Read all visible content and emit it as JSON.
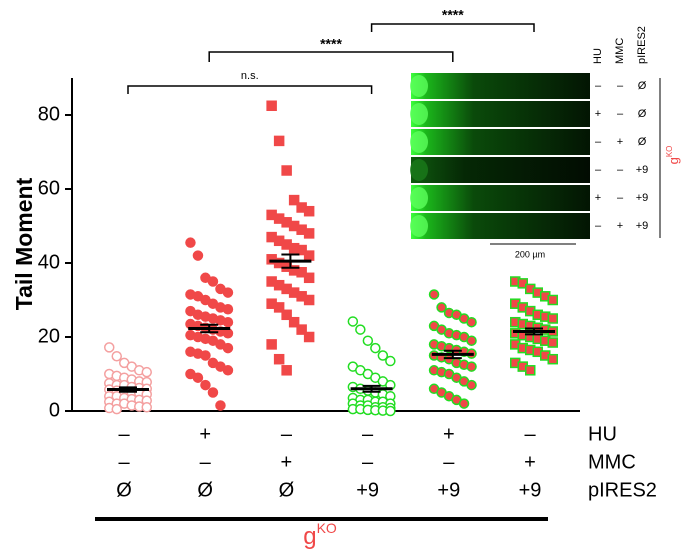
{
  "chart_data": {
    "type": "dot",
    "ylabel": "Tail Moment",
    "ylim": [
      0,
      90
    ],
    "yticks": [
      0,
      20,
      40,
      60,
      80
    ],
    "groups": [
      {
        "marker": "circle",
        "fill": "#ffffff",
        "stroke": "#f4a0a0",
        "mean": 5.8,
        "sem": 0.6,
        "values": [
          17.2,
          14.8,
          13,
          12,
          11,
          10.5,
          10,
          9.5,
          9,
          8.5,
          8,
          7.8,
          7.5,
          7,
          7,
          6.5,
          6.2,
          6,
          5.8,
          5.5,
          5,
          5,
          4.8,
          4.5,
          4,
          4,
          3.5,
          3.2,
          3,
          2.8,
          2.5,
          2,
          2,
          1.5,
          1.2,
          1,
          0.8,
          0.5
        ]
      },
      {
        "marker": "circle",
        "fill": "#f04848",
        "stroke": "#f04848",
        "mean": 22.3,
        "sem": 1.0,
        "values": [
          45.5,
          42,
          36,
          35,
          33,
          32,
          31.5,
          31,
          30,
          29,
          28,
          27.5,
          27,
          26,
          25.5,
          25,
          24.5,
          24,
          23.5,
          23,
          22.5,
          22,
          21.5,
          21,
          20.5,
          20,
          19.5,
          19,
          18,
          17,
          16,
          15.5,
          15,
          13,
          12,
          11,
          10,
          9,
          7,
          5,
          1.5
        ]
      },
      {
        "marker": "square",
        "fill": "#f04848",
        "stroke": "#f04848",
        "mean": 40.5,
        "sem": 1.8,
        "values": [
          82.5,
          73,
          65,
          57,
          55,
          54,
          53,
          52,
          51,
          50,
          49,
          48,
          47,
          46,
          45,
          44,
          43.5,
          42,
          41,
          40,
          39,
          38,
          37.5,
          36,
          35,
          34,
          33,
          32,
          31,
          30,
          29,
          28,
          26,
          24,
          22,
          20,
          18,
          14,
          11
        ]
      },
      {
        "marker": "circle",
        "fill": "#ffffff",
        "stroke": "#22dd22",
        "mean": 6.0,
        "sem": 0.8,
        "values": [
          24.2,
          22,
          19,
          17,
          15,
          13.5,
          12,
          11,
          10,
          9,
          8,
          7,
          6.5,
          6,
          5.5,
          5,
          4.5,
          4,
          3.5,
          3,
          3,
          2.5,
          2.5,
          2,
          2,
          1.5,
          1.5,
          1,
          1,
          0.8,
          0.5,
          0.5,
          0.3,
          0.2,
          0.1,
          0
        ]
      },
      {
        "marker": "circle",
        "fill": "#f04848",
        "stroke": "#22dd22",
        "mean": 15.3,
        "sem": 1.0,
        "values": [
          31.5,
          28,
          26.5,
          26,
          25,
          24,
          23,
          22,
          21,
          20.5,
          20,
          19,
          18,
          17.5,
          17,
          16.5,
          16,
          15.5,
          15,
          14.5,
          14,
          13,
          12.5,
          12,
          11,
          10.5,
          10,
          9,
          8,
          7,
          6,
          5,
          4,
          3,
          2
        ]
      },
      {
        "marker": "square",
        "fill": "#f04848",
        "stroke": "#22dd22",
        "mean": 21.5,
        "sem": 0.8,
        "values": [
          35,
          34.5,
          33,
          32,
          31,
          30,
          29,
          28,
          27,
          26,
          25.5,
          25,
          24,
          23.5,
          23,
          22.5,
          22,
          21.5,
          21,
          20.5,
          20,
          19.5,
          19,
          18.5,
          18,
          17,
          16.5,
          16,
          15,
          14,
          13,
          12,
          11
        ]
      }
    ],
    "comparisons": [
      {
        "label": "n.s."
      },
      {
        "label": "****"
      },
      {
        "label": "****"
      }
    ],
    "conditions": [
      {
        "label": "HU",
        "values": [
          "–",
          "+",
          "–",
          "–",
          "+",
          "–"
        ]
      },
      {
        "label": "MMC",
        "values": [
          "–",
          "–",
          "+",
          "–",
          "–",
          "+"
        ]
      },
      {
        "label": "pIRES2",
        "values": [
          "Ø",
          "Ø",
          "Ø",
          "+9",
          "+9",
          "+9"
        ]
      }
    ],
    "group_label": {
      "text": "g",
      "sup": "KO"
    },
    "inset": {
      "columns": [
        "HU",
        "MMC",
        "pIRES2"
      ],
      "rows": [
        [
          "–",
          "–",
          "Ø"
        ],
        [
          "+",
          "–",
          "Ø"
        ],
        [
          "–",
          "+",
          "Ø"
        ],
        [
          "–",
          "–",
          "+9"
        ],
        [
          "+",
          "–",
          "+9"
        ],
        [
          "–",
          "+",
          "+9"
        ]
      ],
      "scale_bar": "200 µm",
      "group_label": {
        "text": "g",
        "sup": "KO"
      }
    }
  }
}
